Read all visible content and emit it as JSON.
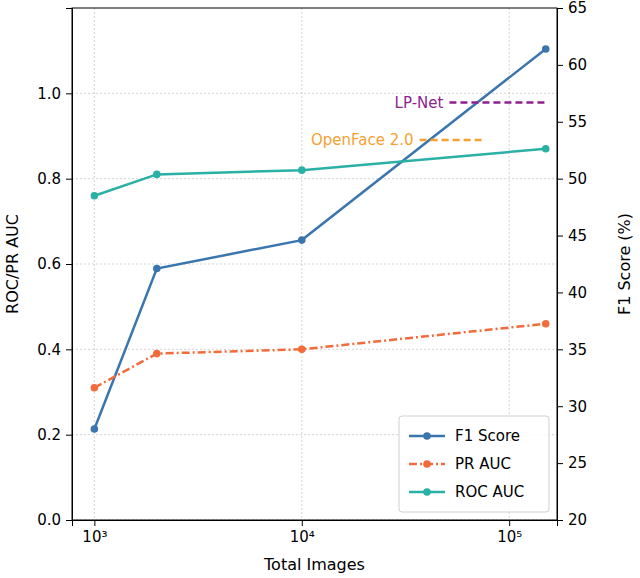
{
  "chart_data": {
    "type": "line",
    "x_label": "Total Images",
    "y_label": "ROC/PR AUC",
    "y2_label": "F1 Score (%)",
    "x": [
      1000,
      2000,
      10000,
      150000
    ],
    "log": "x",
    "grid": true,
    "legend": "lower right",
    "xlim": [
      780,
      170000
    ],
    "xticks": [
      {
        "value": 1000,
        "label": "10³"
      },
      {
        "value": 10000,
        "label": "10⁴"
      },
      {
        "value": 100000,
        "label": "10⁵"
      }
    ],
    "ylim": [
      0,
      1.2
    ],
    "yticks": [
      {
        "value": 0,
        "label": "0.0"
      },
      {
        "value": 0.2,
        "label": "0.2"
      },
      {
        "value": 0.4,
        "label": "0.4"
      },
      {
        "value": 0.6,
        "label": "0.6"
      },
      {
        "value": 0.8,
        "label": "0.8"
      },
      {
        "value": 1.0,
        "label": "1.0"
      }
    ],
    "y2lim": [
      20,
      65
    ],
    "y2ticks": [
      20,
      25,
      30,
      35,
      40,
      45,
      50,
      55,
      60,
      65
    ],
    "series": [
      {
        "name": "F1 Score",
        "color": "#3b75ae",
        "axis": "y2",
        "marker": "circle",
        "line_style": "solid",
        "values": [
          28,
          42.1,
          44.6,
          61.4
        ]
      },
      {
        "name": "PR AUC",
        "color": "#f26b3b",
        "marker": "circle",
        "line_style": "dashdot",
        "values": [
          0.31,
          0.39,
          0.4,
          0.46
        ]
      },
      {
        "name": "ROC AUC",
        "color": "#2ab0a5",
        "marker": "circle",
        "line_style": "solid",
        "values": [
          0.76,
          0.81,
          0.82,
          0.87
        ]
      }
    ],
    "annotations": [
      {
        "text": "LP-Net",
        "color": "#8e1f8e",
        "axis": "y2",
        "line_style": "dashed",
        "x": [
          51500,
          150000
        ],
        "y": 56.7
      },
      {
        "text": "OpenFace 2.0",
        "color": "#f5a133",
        "axis": "y2",
        "line_style": "dashed",
        "x": [
          37000,
          77000
        ],
        "y": 53.4
      }
    ]
  }
}
